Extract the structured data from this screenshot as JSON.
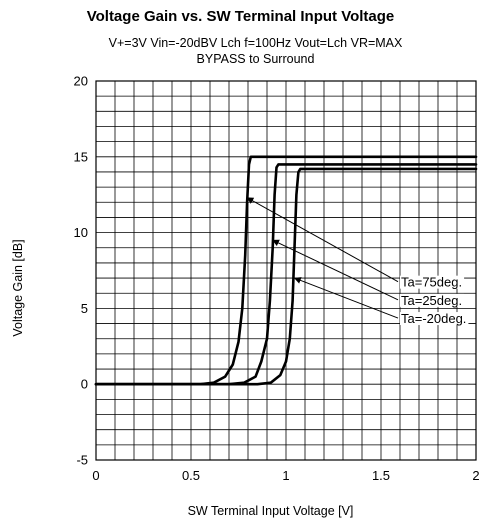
{
  "chart_data": {
    "type": "line",
    "title": "Voltage Gain vs. SW Terminal Input Voltage",
    "subtitle_lines": [
      "V+=3V Vin=-20dBV Lch f=100Hz Vout=Lch VR=MAX",
      "BYPASS to Surround"
    ],
    "xlabel": "SW Terminal Input Voltage [V]",
    "ylabel": "Voltage Gain [dB]",
    "xlim": [
      0,
      2
    ],
    "ylim": [
      -5,
      20
    ],
    "x_ticks": [
      0,
      0.5,
      1,
      1.5,
      2
    ],
    "x_tick_labels": [
      "0",
      "0.5",
      "1",
      "1.5",
      "2"
    ],
    "y_ticks": [
      -5,
      0,
      5,
      10,
      15,
      20
    ],
    "y_tick_labels": [
      "-5",
      "0",
      "5",
      "10",
      "15",
      "20"
    ],
    "grid": true,
    "minor_grid": {
      "x_step": 0.1,
      "y_step": 1
    },
    "series": [
      {
        "name": "Ta=75deg.",
        "x": [
          0,
          0.55,
          0.62,
          0.68,
          0.72,
          0.75,
          0.77,
          0.785,
          0.795,
          0.805,
          0.815,
          0.83,
          1.0,
          1.5,
          2.0
        ],
        "y": [
          0,
          0,
          0.1,
          0.5,
          1.3,
          2.8,
          5.0,
          8.5,
          12.0,
          14.5,
          15.0,
          15.0,
          15.0,
          15.0,
          15.0
        ]
      },
      {
        "name": "Ta=25deg.",
        "x": [
          0,
          0.7,
          0.78,
          0.84,
          0.87,
          0.9,
          0.915,
          0.93,
          0.94,
          0.95,
          0.96,
          1.0,
          1.5,
          2.0
        ],
        "y": [
          0,
          0,
          0.1,
          0.5,
          1.5,
          3.0,
          5.5,
          9.0,
          12.5,
          14.3,
          14.5,
          14.5,
          14.5,
          14.5
        ]
      },
      {
        "name": "Ta=-20deg.",
        "x": [
          0,
          0.85,
          0.92,
          0.97,
          1.0,
          1.02,
          1.035,
          1.045,
          1.055,
          1.065,
          1.075,
          1.2,
          1.5,
          2.0
        ],
        "y": [
          0,
          0,
          0.1,
          0.6,
          1.5,
          3.0,
          5.5,
          9.0,
          12.5,
          14.0,
          14.2,
          14.2,
          14.2,
          14.2
        ]
      }
    ],
    "annotations": [
      {
        "text": "Ta=75deg.",
        "x": 1.6,
        "y": 6.5,
        "arrow_to": [
          0.795,
          12.3
        ]
      },
      {
        "text": "Ta=25deg.",
        "x": 1.6,
        "y": 5.3,
        "arrow_to": [
          0.93,
          9.5
        ]
      },
      {
        "text": "Ta=-20deg.",
        "x": 1.6,
        "y": 4.1,
        "arrow_to": [
          1.045,
          7.0
        ]
      }
    ]
  }
}
